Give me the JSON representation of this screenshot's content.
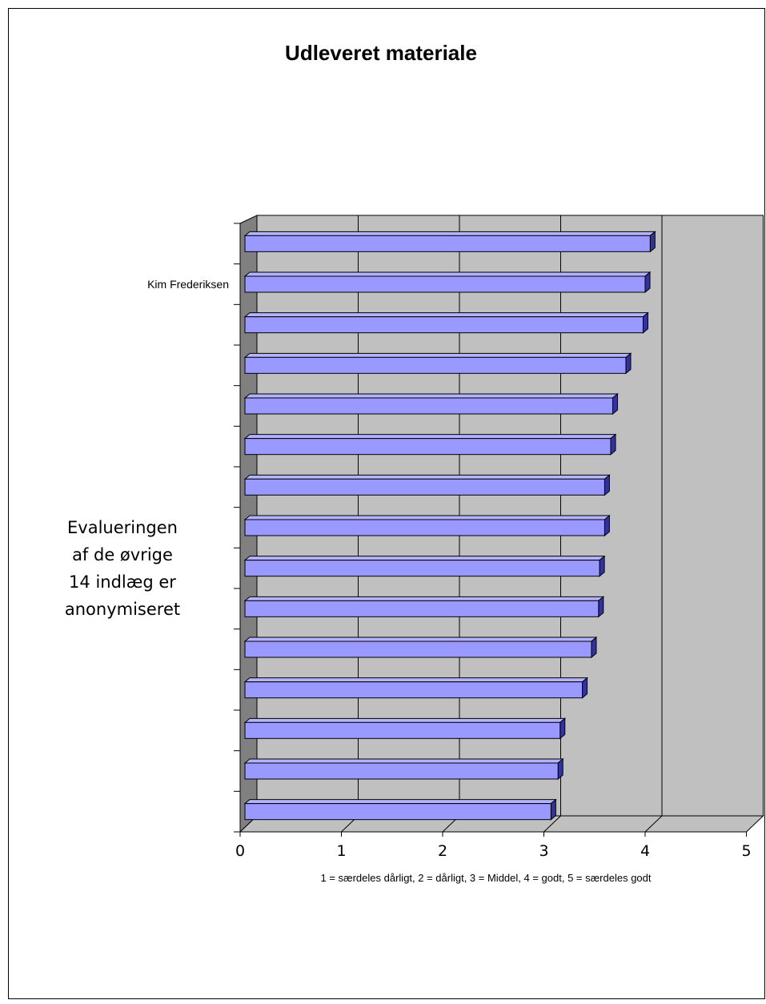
{
  "chart_data": {
    "type": "bar",
    "orientation": "horizontal",
    "title": "Udleveret materiale",
    "xlabel": "1 = særdeles dårligt, 2 = dårligt, 3 = Middel, 4 = godt, 5 = særdeles godt",
    "ylabel": "",
    "xlim": [
      0,
      5
    ],
    "x_ticks": [
      "0",
      "1",
      "2",
      "3",
      "4",
      "5"
    ],
    "grid": true,
    "categories": [
      "",
      "Kim Frederiksen",
      "",
      "",
      "",
      "",
      "",
      "",
      "",
      "",
      "",
      "",
      "",
      "",
      ""
    ],
    "values": [
      4.05,
      4.0,
      3.98,
      3.81,
      3.68,
      3.66,
      3.6,
      3.6,
      3.55,
      3.54,
      3.47,
      3.38,
      3.16,
      3.14,
      3.07
    ],
    "annotation": [
      "Evalueringen",
      "af de øvrige",
      "14 indlæg er",
      "anonymiseret"
    ],
    "colors": {
      "bar_face": "#9999ff",
      "bar_top": "#b3b3ff",
      "bar_side": "#333399",
      "wall": "#c0c0c0",
      "wall_side": "#808080"
    }
  }
}
